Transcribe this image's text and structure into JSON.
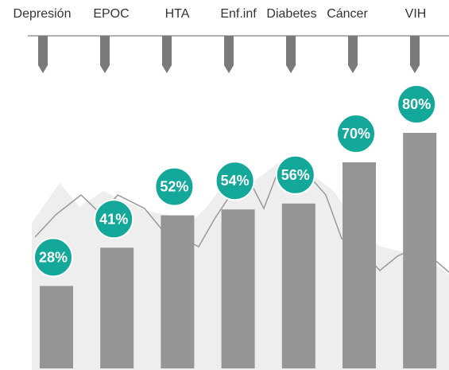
{
  "chart_data": {
    "type": "bar",
    "categories": [
      "Depresión",
      "EPOC",
      "HTA",
      "Enf.inf",
      "Diabetes",
      "Cáncer",
      "VIH"
    ],
    "values": [
      28,
      41,
      52,
      54,
      56,
      70,
      80
    ],
    "value_labels": [
      "28%",
      "41%",
      "52%",
      "54%",
      "56%",
      "70%",
      "80%"
    ],
    "color": "#959595",
    "label_color": "#14a89a",
    "ylim": [
      0,
      100
    ]
  }
}
